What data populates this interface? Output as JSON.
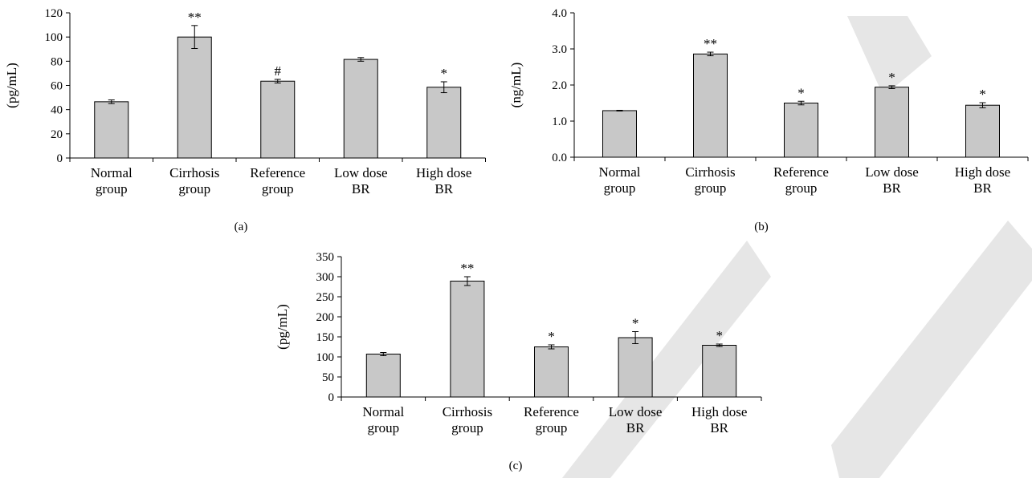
{
  "chart_data": [
    {
      "type": "bar",
      "panel_label": "(a)",
      "ylabel": "(pg/mL)",
      "categories": [
        [
          "Normal",
          "group"
        ],
        [
          "Cirrhosis",
          "group"
        ],
        [
          "Reference",
          "group"
        ],
        [
          "Low dose",
          "BR"
        ],
        [
          "High dose",
          "BR"
        ]
      ],
      "values": [
        46.5,
        100,
        63.5,
        81.5,
        58.5
      ],
      "errors": [
        1.5,
        9.5,
        1.5,
        1.5,
        4.5
      ],
      "significance": [
        "",
        "**",
        "#",
        "",
        "*"
      ],
      "ylim": [
        0,
        120
      ],
      "yticks": [
        "0",
        "20",
        "40",
        "60",
        "80",
        "100",
        "120"
      ],
      "bar_color": "#c8c8c8"
    },
    {
      "type": "bar",
      "panel_label": "(b)",
      "ylabel": "(ng/mL)",
      "categories": [
        [
          "Normal",
          "group"
        ],
        [
          "Cirrhosis",
          "group"
        ],
        [
          "Reference",
          "group"
        ],
        [
          "Low dose",
          "BR"
        ],
        [
          "High dose",
          "BR"
        ]
      ],
      "values": [
        1.29,
        2.86,
        1.5,
        1.94,
        1.44
      ],
      "errors": [
        0.01,
        0.05,
        0.05,
        0.04,
        0.07
      ],
      "significance": [
        "",
        "**",
        "*",
        "*",
        "*"
      ],
      "ylim": [
        0,
        4
      ],
      "yticks": [
        "0.0",
        "1.0",
        "2.0",
        "3.0",
        "4.0"
      ],
      "bar_color": "#c8c8c8"
    },
    {
      "type": "bar",
      "panel_label": "(c)",
      "ylabel": "(pg/mL)",
      "categories": [
        [
          "Normal",
          "group"
        ],
        [
          "Cirrhosis",
          "group"
        ],
        [
          "Reference",
          "group"
        ],
        [
          "Low dose",
          "BR"
        ],
        [
          "High dose",
          "BR"
        ]
      ],
      "values": [
        107,
        289,
        125,
        148,
        129
      ],
      "errors": [
        4,
        11,
        5,
        15,
        3
      ],
      "significance": [
        "",
        "**",
        "*",
        "*",
        "*"
      ],
      "ylim": [
        0,
        350
      ],
      "yticks": [
        "0",
        "50",
        "100",
        "150",
        "200",
        "250",
        "300",
        "350"
      ],
      "bar_color": "#c8c8c8"
    }
  ]
}
